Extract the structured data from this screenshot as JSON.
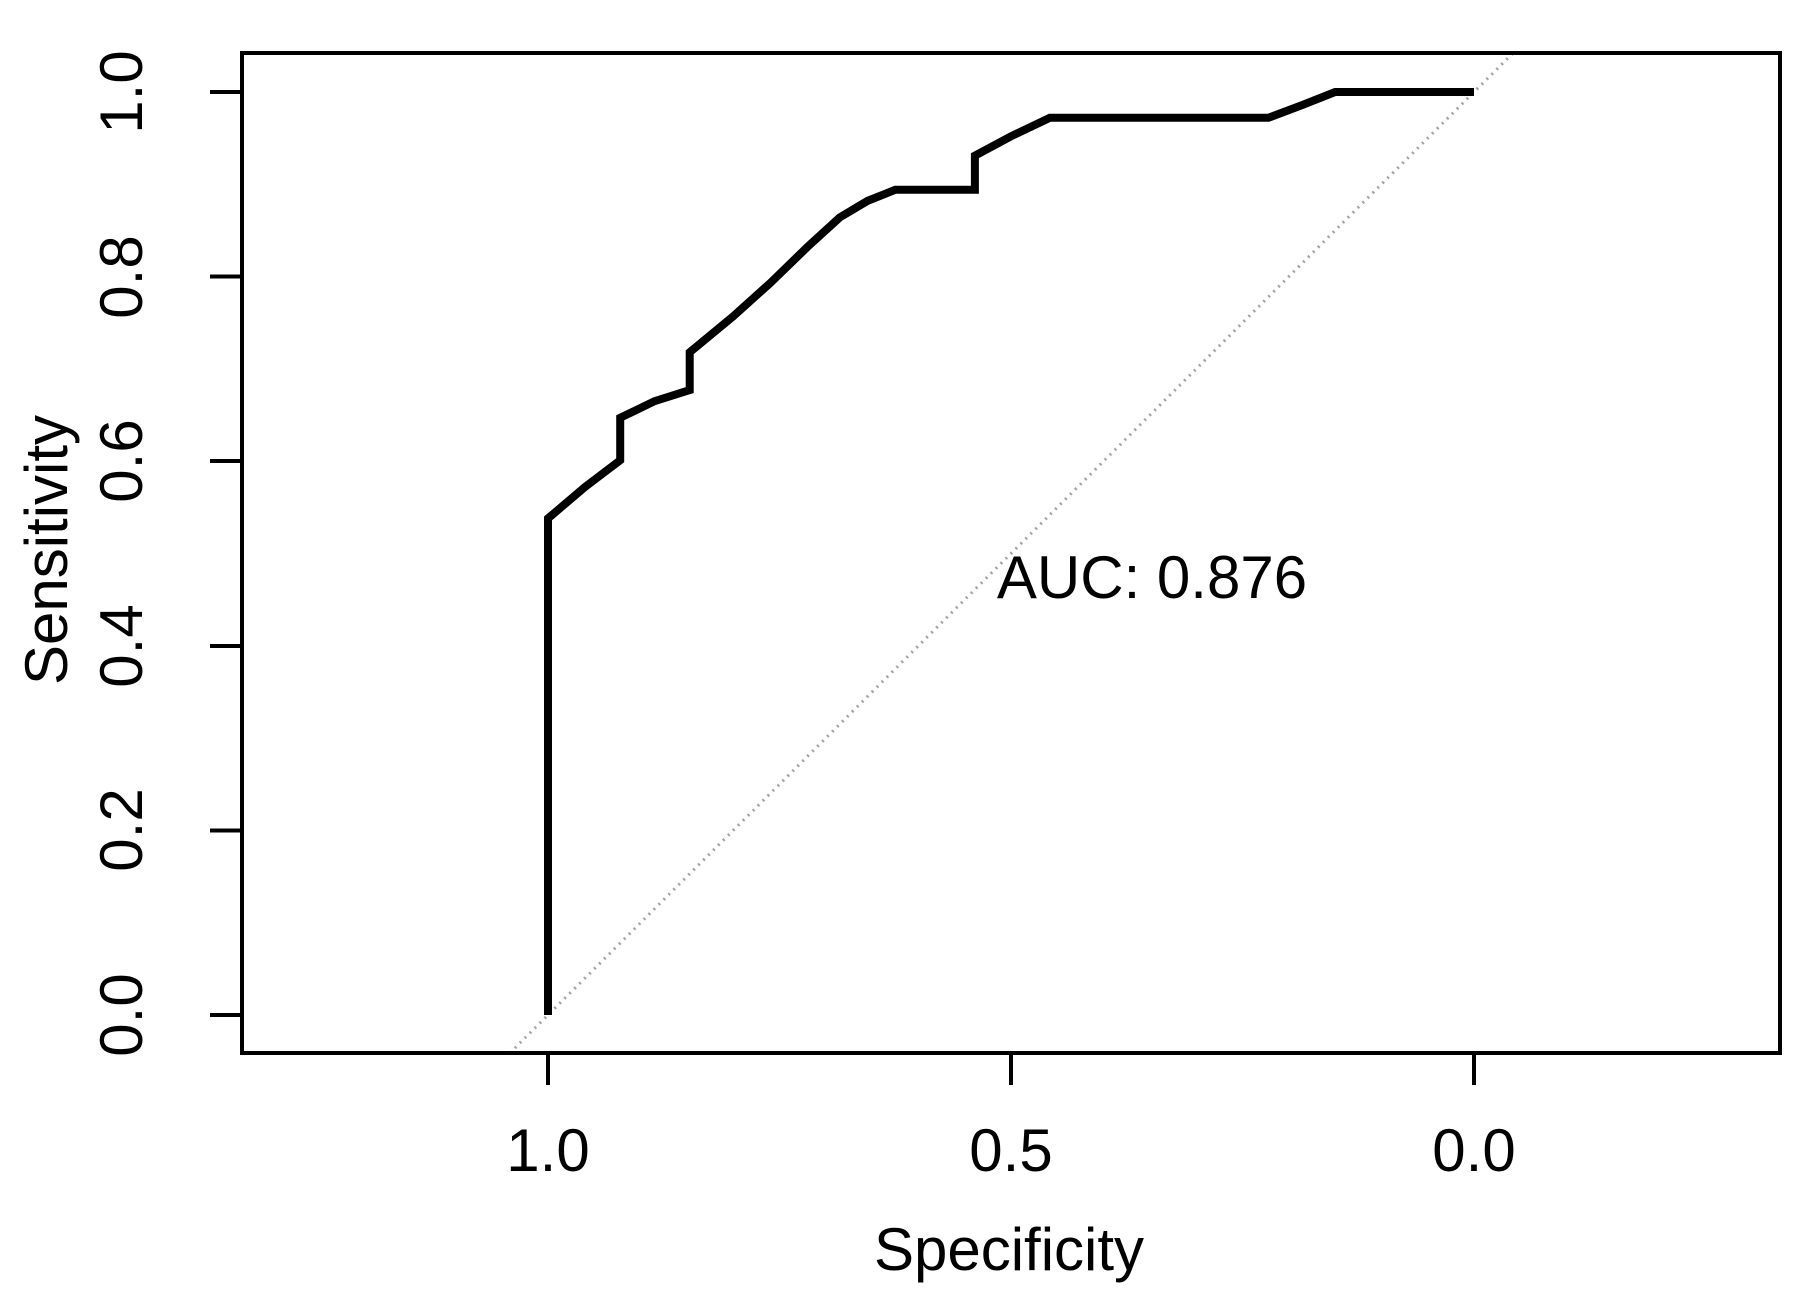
{
  "figure": {
    "background_color": "#ffffff",
    "text_color": "#000000",
    "curve_color": "#000000",
    "diagonal_color": "#a3a3a3",
    "box_color": "#000000"
  },
  "annotation": {
    "auc_label": "AUC: 0.876"
  },
  "chart_data": {
    "type": "line",
    "title": "",
    "xlabel": "Specificity",
    "ylabel": "Sensitivity",
    "x_axis_reversed": true,
    "xlim": [
      1.0,
      0.0
    ],
    "ylim": [
      0.0,
      1.0
    ],
    "grid": false,
    "legend": "none",
    "auc": 0.876,
    "x_ticks": [
      {
        "value": 1.0,
        "label": "1.0"
      },
      {
        "value": 0.5,
        "label": "0.5"
      },
      {
        "value": 0.0,
        "label": "0.0"
      }
    ],
    "y_ticks": [
      {
        "value": 1.0,
        "label": "1.0"
      },
      {
        "value": 0.8,
        "label": "0.8"
      },
      {
        "value": 0.6,
        "label": "0.6"
      },
      {
        "value": 0.4,
        "label": "0.4"
      },
      {
        "value": 0.2,
        "label": "0.2"
      },
      {
        "value": 0.0,
        "label": "0.0"
      }
    ],
    "series": [
      {
        "name": "ROC curve",
        "style": "solid-thick-black",
        "points_spec_sens": [
          [
            1.0,
            0.0
          ],
          [
            1.0,
            0.538
          ],
          [
            0.96,
            0.572
          ],
          [
            0.922,
            0.601
          ],
          [
            0.922,
            0.647
          ],
          [
            0.885,
            0.665
          ],
          [
            0.847,
            0.677
          ],
          [
            0.847,
            0.718
          ],
          [
            0.8,
            0.757
          ],
          [
            0.76,
            0.793
          ],
          [
            0.72,
            0.832
          ],
          [
            0.685,
            0.864
          ],
          [
            0.655,
            0.882
          ],
          [
            0.625,
            0.894
          ],
          [
            0.539,
            0.894
          ],
          [
            0.539,
            0.931
          ],
          [
            0.5,
            0.952
          ],
          [
            0.458,
            0.972
          ],
          [
            0.222,
            0.972
          ],
          [
            0.185,
            0.986
          ],
          [
            0.15,
            1.0
          ],
          [
            0.0,
            1.0
          ]
        ]
      },
      {
        "name": "chance diagonal",
        "style": "dotted-thin-gray",
        "points_spec_sens": [
          [
            1.0,
            0.0
          ],
          [
            0.0,
            1.0
          ]
        ]
      }
    ]
  }
}
